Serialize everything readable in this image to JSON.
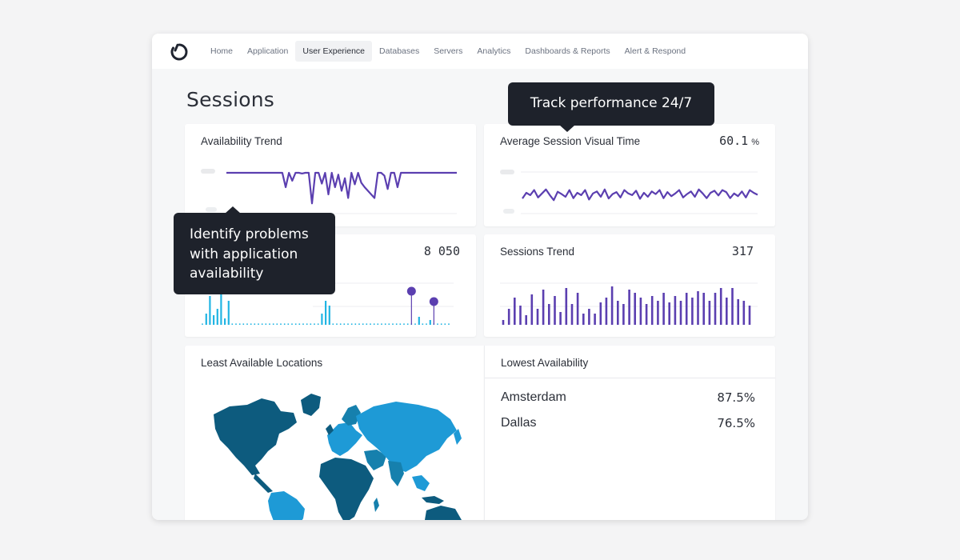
{
  "nav": {
    "logo": "logo-icon",
    "items": [
      "Home",
      "Application",
      "User Experience",
      "Databases",
      "Servers",
      "Analytics",
      "Dashboards & Reports",
      "Alert & Respond"
    ],
    "active": "User Experience"
  },
  "page": {
    "title": "Sessions"
  },
  "cards": {
    "availability_trend": {
      "title": "Availability Trend"
    },
    "avg_session_visual_time": {
      "title": "Average Session Visual Time",
      "value": "60.1",
      "unit": "%"
    },
    "errors": {
      "value": "8 050"
    },
    "sessions_trend": {
      "title": "Sessions Trend",
      "value": "317"
    },
    "least_available_locations": {
      "title": "Least Available Locations"
    },
    "lowest_availability": {
      "title": "Lowest Availability",
      "rows": [
        {
          "location": "Amsterdam",
          "value": "87.5%"
        },
        {
          "location": "Dallas",
          "value": "76.5%"
        }
      ]
    }
  },
  "tooltips": {
    "track": "Track performance 24/7",
    "identify": [
      "Identify problems",
      "with application",
      "availability"
    ]
  },
  "colors": {
    "purple": "#5b3fb0",
    "cyan": "#22b5e3",
    "map_dark": "#0d5b7e",
    "map_mid": "#1680ad",
    "map_light": "#1e9ad6",
    "tooltip_bg": "#1e222b"
  },
  "chart_data": [
    {
      "type": "line",
      "name": "availability-trend",
      "values": [
        100,
        100,
        100,
        100,
        100,
        100,
        100,
        100,
        100,
        100,
        100,
        100,
        100,
        100,
        100,
        100,
        100,
        100,
        60,
        100,
        78,
        100,
        100,
        98,
        100,
        100,
        15,
        100,
        100,
        70,
        100,
        40,
        100,
        60,
        95,
        50,
        85,
        30,
        100,
        68,
        100,
        72,
        60,
        50,
        40,
        30,
        100,
        100,
        92,
        55,
        100,
        100,
        60,
        100,
        100,
        100,
        100,
        100,
        100,
        100,
        100,
        100,
        100,
        100,
        100,
        100,
        100,
        100,
        100,
        100,
        100
      ]
    },
    {
      "type": "line",
      "name": "average-session-visual-time",
      "values": [
        45,
        62,
        55,
        70,
        48,
        60,
        72,
        55,
        40,
        65,
        58,
        50,
        70,
        46,
        62,
        55,
        70,
        42,
        60,
        66,
        50,
        72,
        45,
        58,
        64,
        48,
        70,
        60,
        55,
        68,
        44,
        62,
        50,
        66,
        58,
        70,
        46,
        64,
        52,
        60,
        70,
        48,
        58,
        66,
        50,
        72,
        60,
        46,
        62,
        68,
        54,
        70,
        64,
        46,
        60,
        52,
        66,
        48,
        70,
        62,
        56
      ]
    },
    {
      "type": "bar",
      "name": "errors-trend",
      "values": [
        0,
        14,
        36,
        12,
        20,
        44,
        8,
        30,
        0,
        0,
        0,
        0,
        0,
        0,
        0,
        0,
        0,
        0,
        0,
        0,
        0,
        0,
        0,
        0,
        0,
        0,
        0,
        0,
        0,
        0,
        0,
        0,
        14,
        30,
        24,
        0,
        0,
        0,
        0,
        0,
        0,
        0,
        0,
        0,
        0,
        0,
        0,
        0,
        0,
        0,
        0,
        0,
        0,
        0,
        0,
        0,
        0,
        0,
        10,
        0,
        0,
        6,
        0,
        0,
        0,
        0,
        0
      ],
      "markers": [
        56,
        62
      ]
    },
    {
      "type": "bar",
      "name": "sessions-trend",
      "values": [
        6,
        20,
        34,
        24,
        12,
        38,
        20,
        44,
        26,
        36,
        16,
        46,
        26,
        40,
        14,
        20,
        14,
        28,
        34,
        48,
        30,
        26,
        44,
        40,
        34,
        26,
        36,
        30,
        40,
        28,
        36,
        30,
        40,
        34,
        42,
        40,
        30,
        40,
        46,
        34,
        46,
        32,
        30,
        24
      ]
    }
  ]
}
